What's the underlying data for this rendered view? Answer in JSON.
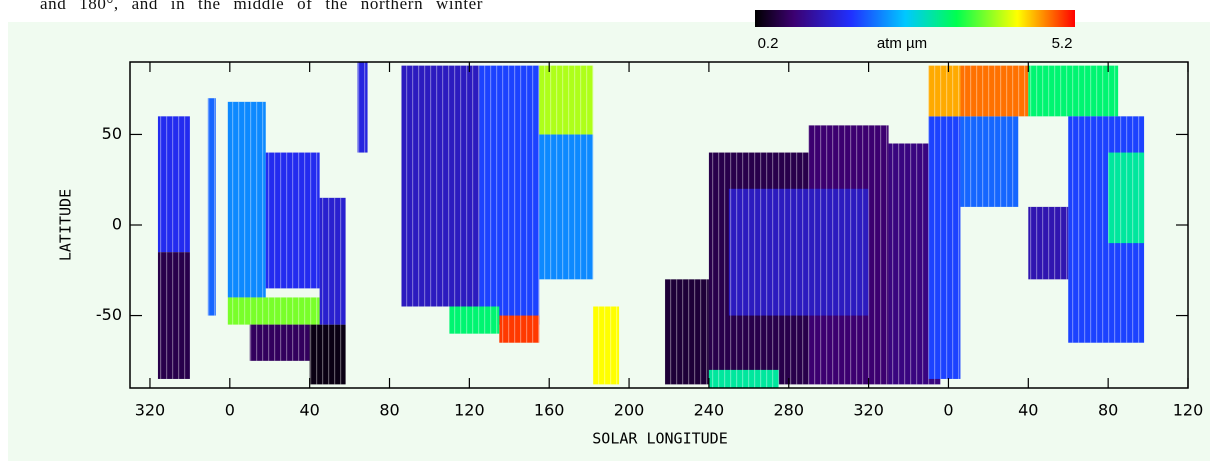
{
  "caption_fragment": "and 180°, and  in the middle of the northern winter",
  "chart_data": {
    "type": "heatmap",
    "xlabel": "SOLAR LONGITUDE",
    "ylabel": "LATITUDE",
    "colorbar": {
      "clim": [
        0.2,
        5.2
      ],
      "unit": "atm µm"
    },
    "xlim": [
      -50,
      480
    ],
    "ylim": [
      -90,
      90
    ],
    "xticks": [
      {
        "value": -40,
        "label": "320"
      },
      0,
      40,
      80,
      120,
      160,
      200,
      240,
      280,
      {
        "value": 320,
        "label": "320"
      },
      {
        "value": 360,
        "label": "0"
      },
      {
        "value": 400,
        "label": "40"
      },
      {
        "value": 440,
        "label": "80"
      },
      {
        "value": 480,
        "label": "120"
      }
    ],
    "yticks": [
      50,
      0,
      -50
    ],
    "cells": [
      {
        "x": [
          -36,
          -20
        ],
        "lat": [
          -15,
          60
        ],
        "value": 1.6
      },
      {
        "x": [
          -36,
          -20
        ],
        "lat": [
          -85,
          -15
        ],
        "value": 0.6
      },
      {
        "x": [
          -11,
          -7
        ],
        "lat": [
          -50,
          70
        ],
        "value": 2.0
      },
      {
        "x": [
          -1,
          18
        ],
        "lat": [
          -40,
          68
        ],
        "value": 2.2
      },
      {
        "x": [
          18,
          45
        ],
        "lat": [
          -35,
          40
        ],
        "value": 1.6
      },
      {
        "x": [
          -1,
          45
        ],
        "lat": [
          -55,
          -40
        ],
        "value": 3.8
      },
      {
        "x": [
          10,
          40
        ],
        "lat": [
          -75,
          -55
        ],
        "value": 0.7
      },
      {
        "x": [
          40,
          58
        ],
        "lat": [
          -88,
          -55
        ],
        "value": 0.3
      },
      {
        "x": [
          45,
          58
        ],
        "lat": [
          -55,
          15
        ],
        "value": 1.4
      },
      {
        "x": [
          64,
          69
        ],
        "lat": [
          40,
          90
        ],
        "value": 1.5
      },
      {
        "x": [
          86,
          125
        ],
        "lat": [
          -45,
          88
        ],
        "value": 1.3
      },
      {
        "x": [
          125,
          155
        ],
        "lat": [
          -55,
          88
        ],
        "value": 1.8
      },
      {
        "x": [
          155,
          182
        ],
        "lat": [
          -30,
          50
        ],
        "value": 2.2
      },
      {
        "x": [
          155,
          182
        ],
        "lat": [
          50,
          88
        ],
        "value": 4.0
      },
      {
        "x": [
          135,
          155
        ],
        "lat": [
          -65,
          -50
        ],
        "value": 5.0
      },
      {
        "x": [
          110,
          135
        ],
        "lat": [
          -60,
          -45
        ],
        "value": 3.2
      },
      {
        "x": [
          182,
          195
        ],
        "lat": [
          -88,
          -45
        ],
        "value": 4.3
      },
      {
        "x": [
          218,
          240
        ],
        "lat": [
          -88,
          -30
        ],
        "value": 0.5
      },
      {
        "x": [
          240,
          290
        ],
        "lat": [
          -88,
          40
        ],
        "value": 0.6
      },
      {
        "x": [
          290,
          330
        ],
        "lat": [
          -88,
          55
        ],
        "value": 0.8
      },
      {
        "x": [
          250,
          320
        ],
        "lat": [
          -50,
          20
        ],
        "value": 1.3
      },
      {
        "x": [
          330,
          356
        ],
        "lat": [
          -88,
          45
        ],
        "value": 0.9
      },
      {
        "x": [
          240,
          275
        ],
        "lat": [
          -90,
          -80
        ],
        "value": 3.0
      },
      {
        "x": [
          350,
          366
        ],
        "lat": [
          -85,
          60
        ],
        "value": 1.8
      },
      {
        "x": [
          350,
          366
        ],
        "lat": [
          60,
          88
        ],
        "value": 4.6
      },
      {
        "x": [
          366,
          395
        ],
        "lat": [
          10,
          60
        ],
        "value": 2.0
      },
      {
        "x": [
          366,
          400
        ],
        "lat": [
          60,
          88
        ],
        "value": 4.8
      },
      {
        "x": [
          400,
          445
        ],
        "lat": [
          60,
          88
        ],
        "value": 3.2
      },
      {
        "x": [
          420,
          458
        ],
        "lat": [
          -65,
          60
        ],
        "value": 1.8
      },
      {
        "x": [
          400,
          420
        ],
        "lat": [
          -30,
          10
        ],
        "value": 1.2
      },
      {
        "x": [
          440,
          458
        ],
        "lat": [
          -10,
          40
        ],
        "value": 3.0
      }
    ]
  }
}
